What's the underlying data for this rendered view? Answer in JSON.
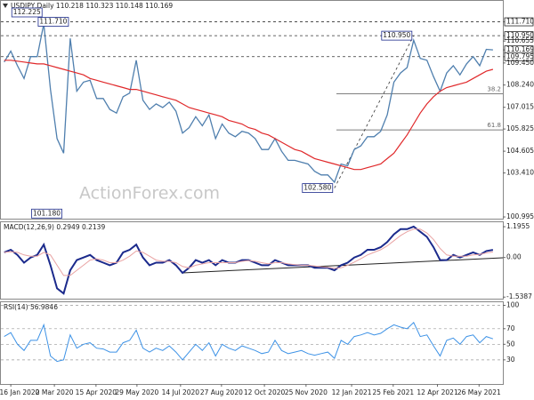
{
  "chart_data": [
    {
      "type": "line",
      "title": "USDJPY,Daily  110.218 110.323 110.148 110.169",
      "watermark": "ActionForex.com",
      "xlim": [
        -0.5,
        75.5
      ],
      "ylim": [
        100.9,
        112.86
      ],
      "yticks": [
        {
          "value": 111.71,
          "label": "111.710",
          "boxed": true
        },
        {
          "value": 110.95,
          "label": "110.950",
          "boxed": true
        },
        {
          "value": 110.655,
          "label": "110.655"
        },
        {
          "value": 110.169,
          "label": "110.169",
          "boxed": true
        },
        {
          "value": 109.795,
          "label": "109.795",
          "boxed": true
        },
        {
          "value": 109.45,
          "label": "109.450"
        },
        {
          "value": 108.24,
          "label": "108.240"
        },
        107.015,
        105.825,
        104.605,
        {
          "value": 103.41,
          "label": "103.410"
        },
        100.995
      ],
      "levels": [
        111.71,
        110.95,
        109.795
      ],
      "fib_levels": [
        {
          "ratio": 38.2,
          "price": 107.753
        },
        {
          "ratio": 61.8,
          "price": 105.777
        }
      ],
      "annotations": [
        {
          "x": 6,
          "y": 112.225,
          "label": "112.225"
        },
        {
          "x": 10,
          "y": 111.71,
          "label": "111.710"
        },
        {
          "x": 9,
          "y": 101.18,
          "label": "101.180"
        },
        {
          "x": 62,
          "y": 110.95,
          "label": "110.950"
        },
        {
          "x": 50,
          "y": 102.58,
          "label": "102.580"
        }
      ],
      "series": [
        {
          "color": "#4f7fae",
          "width": 1.3,
          "values": [
            109.5,
            110.1,
            109.3,
            108.6,
            109.8,
            109.8,
            111.6,
            108.0,
            105.3,
            104.5,
            110.8,
            107.9,
            108.4,
            108.5,
            107.5,
            107.5,
            106.9,
            106.7,
            107.6,
            107.8,
            109.6,
            107.4,
            106.9,
            107.2,
            107.0,
            107.3,
            106.8,
            105.6,
            105.9,
            106.5,
            106.0,
            106.6,
            105.3,
            106.1,
            105.6,
            105.4,
            105.7,
            105.6,
            105.3,
            104.7,
            104.7,
            105.3,
            104.6,
            104.1,
            104.1,
            104.0,
            103.9,
            103.5,
            103.3,
            103.3,
            102.9,
            103.9,
            103.8,
            104.7,
            104.9,
            105.4,
            105.4,
            105.7,
            106.6,
            108.4,
            108.9,
            109.2,
            110.7,
            109.7,
            109.6,
            108.7,
            107.9,
            108.9,
            109.3,
            108.8,
            109.4,
            109.8,
            109.3,
            110.2,
            110.169
          ]
        },
        {
          "color": "#e0282a",
          "width": 1.2,
          "values": [
            109.6,
            109.6,
            109.55,
            109.5,
            109.45,
            109.4,
            109.4,
            109.3,
            109.2,
            109.1,
            109.0,
            108.9,
            108.8,
            108.6,
            108.5,
            108.4,
            108.3,
            108.2,
            108.1,
            108.0,
            108.0,
            107.9,
            107.8,
            107.7,
            107.6,
            107.5,
            107.4,
            107.2,
            107.0,
            106.9,
            106.8,
            106.7,
            106.6,
            106.5,
            106.3,
            106.2,
            106.1,
            105.9,
            105.8,
            105.6,
            105.5,
            105.3,
            105.1,
            104.9,
            104.7,
            104.6,
            104.4,
            104.2,
            104.1,
            104.0,
            103.9,
            103.8,
            103.7,
            103.6,
            103.6,
            103.7,
            103.8,
            103.9,
            104.2,
            104.5,
            105.0,
            105.5,
            106.1,
            106.7,
            107.2,
            107.6,
            107.9,
            108.1,
            108.2,
            108.3,
            108.4,
            108.6,
            108.8,
            109.0,
            109.1
          ]
        }
      ]
    },
    {
      "type": "line",
      "title": "MACD(12,26,9) 0.2949 0.2139",
      "xlim": [
        -0.5,
        75.5
      ],
      "ylim": [
        -1.6,
        1.37
      ],
      "yticks": [
        1.1955,
        {
          "value": 0,
          "label": "0.00"
        },
        -1.5387
      ],
      "series": [
        {
          "color": "#1b2a8c",
          "width": 2,
          "values": [
            0.2,
            0.3,
            0.1,
            -0.2,
            0.0,
            0.1,
            0.5,
            -0.3,
            -1.2,
            -1.4,
            -0.5,
            -0.1,
            0.0,
            0.1,
            -0.1,
            -0.2,
            -0.3,
            -0.2,
            0.2,
            0.3,
            0.5,
            0.0,
            -0.3,
            -0.2,
            -0.2,
            -0.1,
            -0.3,
            -0.6,
            -0.4,
            -0.1,
            -0.2,
            -0.1,
            -0.3,
            -0.1,
            -0.2,
            -0.2,
            -0.1,
            -0.1,
            -0.2,
            -0.3,
            -0.3,
            -0.1,
            -0.2,
            -0.3,
            -0.3,
            -0.3,
            -0.3,
            -0.4,
            -0.4,
            -0.4,
            -0.5,
            -0.3,
            -0.2,
            0.0,
            0.1,
            0.3,
            0.3,
            0.4,
            0.6,
            0.9,
            1.1,
            1.1,
            1.2,
            1.0,
            0.8,
            0.4,
            -0.1,
            -0.1,
            0.1,
            0.0,
            0.1,
            0.2,
            0.1,
            0.25,
            0.2949
          ]
        },
        {
          "color": "#e9a3a3",
          "width": 1,
          "values": [
            0.2,
            0.22,
            0.2,
            0.1,
            0.05,
            0.05,
            0.2,
            0.1,
            -0.3,
            -0.7,
            -0.7,
            -0.5,
            -0.3,
            -0.1,
            -0.05,
            -0.1,
            -0.2,
            -0.2,
            -0.1,
            0.05,
            0.25,
            0.2,
            0.05,
            -0.1,
            -0.15,
            -0.15,
            -0.2,
            -0.35,
            -0.4,
            -0.3,
            -0.25,
            -0.2,
            -0.2,
            -0.2,
            -0.2,
            -0.2,
            -0.15,
            -0.12,
            -0.15,
            -0.2,
            -0.25,
            -0.2,
            -0.2,
            -0.25,
            -0.28,
            -0.3,
            -0.3,
            -0.33,
            -0.36,
            -0.38,
            -0.42,
            -0.4,
            -0.3,
            -0.18,
            -0.05,
            0.1,
            0.2,
            0.3,
            0.45,
            0.65,
            0.85,
            1.0,
            1.1,
            1.1,
            0.95,
            0.7,
            0.35,
            0.1,
            0.05,
            0.05,
            0.05,
            0.1,
            0.12,
            0.18,
            0.2139
          ]
        }
      ]
    },
    {
      "type": "line",
      "title": "RSI(14) 56.9846",
      "xlim": [
        -0.5,
        75.5
      ],
      "ylim": [
        -1,
        104
      ],
      "yticks": [
        100,
        70,
        50,
        30
      ],
      "xticks": [
        {
          "value": 1,
          "label": "16 Jan 2020"
        },
        {
          "value": 7.6,
          "label": "2 Mar 2020"
        },
        {
          "value": 13.9,
          "label": "15 Apr 2020"
        },
        {
          "value": 20.1,
          "label": "29 May 2020"
        },
        {
          "value": 26.7,
          "label": "14 Jul 2020"
        },
        {
          "value": 32.9,
          "label": "27 Aug 2020"
        },
        {
          "value": 39.4,
          "label": "12 Oct 2020"
        },
        {
          "value": 45.7,
          "label": "25 Nov 2020"
        },
        {
          "value": 52.6,
          "label": "12 Jan 2021"
        },
        {
          "value": 58.9,
          "label": "25 Feb 2021"
        },
        {
          "value": 65.6,
          "label": "12 Apr 2021"
        },
        {
          "value": 71.9,
          "label": "26 May 2021"
        }
      ],
      "series": [
        {
          "color": "#3d92e6",
          "width": 1,
          "values": [
            60,
            65,
            50,
            42,
            55,
            55,
            75,
            35,
            28,
            30,
            62,
            45,
            50,
            52,
            45,
            44,
            40,
            40,
            52,
            55,
            68,
            45,
            40,
            45,
            42,
            48,
            40,
            30,
            40,
            50,
            42,
            52,
            35,
            50,
            45,
            42,
            48,
            45,
            42,
            38,
            40,
            55,
            42,
            38,
            40,
            42,
            38,
            36,
            38,
            40,
            32,
            55,
            50,
            60,
            62,
            65,
            62,
            64,
            70,
            75,
            72,
            70,
            78,
            60,
            62,
            48,
            35,
            55,
            58,
            50,
            60,
            62,
            52,
            60,
            56.9846
          ]
        }
      ]
    }
  ]
}
